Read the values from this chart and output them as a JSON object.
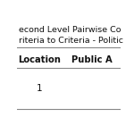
{
  "title_line1": "econd Level Pairwise Co",
  "title_line2": "riteria to Criteria - Politic",
  "col_headers": [
    "Location",
    "Public A"
  ],
  "rows": [
    [
      "1",
      ""
    ]
  ],
  "background_color": "#ffffff",
  "line_color": "#888888",
  "title_fontsize": 6.8,
  "header_fontsize": 7.2,
  "cell_fontsize": 7.5,
  "fig_width": 1.5,
  "fig_height": 1.5,
  "fig_dpi": 100
}
